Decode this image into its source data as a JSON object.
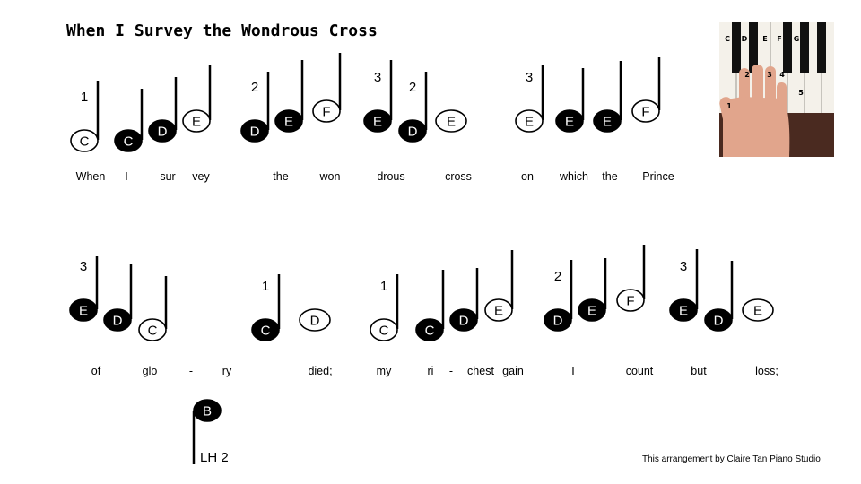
{
  "title": "When I Survey the Wondrous Cross",
  "credit": "This arrangement by Claire Tan Piano Studio",
  "left_hand_label": "LH 2",
  "colors": {
    "filled": "#000000",
    "open": "#ffffff",
    "ink": "#000000"
  },
  "photo": {
    "description_icon": "piano-keyboard-hand-photo",
    "key_letters": [
      "C",
      "D",
      "E",
      "F",
      "G"
    ],
    "finger_numbers": [
      "1",
      "2",
      "3",
      "4",
      "5"
    ]
  },
  "lines": [
    {
      "notes": [
        {
          "letter": "C",
          "filled": false,
          "finger": "1"
        },
        {
          "letter": "C",
          "filled": true
        },
        {
          "letter": "D",
          "filled": true
        },
        {
          "letter": "E",
          "filled": false
        },
        {
          "letter": "D",
          "filled": true,
          "finger": "2"
        },
        {
          "letter": "E",
          "filled": true
        },
        {
          "letter": "F",
          "filled": false
        },
        {
          "letter": "E",
          "filled": true,
          "finger": "3"
        },
        {
          "letter": "D",
          "filled": true,
          "finger": "2"
        },
        {
          "letter": "E",
          "filled": false,
          "stemless": true
        },
        {
          "letter": "E",
          "filled": false,
          "finger": "3"
        },
        {
          "letter": "E",
          "filled": true
        },
        {
          "letter": "E",
          "filled": true
        },
        {
          "letter": "F",
          "filled": false
        }
      ],
      "lyrics": [
        "When",
        "I",
        "sur",
        "-",
        "vey",
        "the",
        "won",
        "-",
        "drous",
        "cross",
        "on",
        "which",
        "the",
        "Prince"
      ]
    },
    {
      "notes": [
        {
          "letter": "E",
          "filled": true,
          "finger": "3"
        },
        {
          "letter": "D",
          "filled": true
        },
        {
          "letter": "C",
          "filled": false
        },
        {
          "letter": "C",
          "filled": true,
          "finger": "1"
        },
        {
          "letter": "D",
          "filled": false,
          "stemless": true
        },
        {
          "letter": "C",
          "filled": false,
          "finger": "1"
        },
        {
          "letter": "C",
          "filled": true
        },
        {
          "letter": "D",
          "filled": true
        },
        {
          "letter": "E",
          "filled": false
        },
        {
          "letter": "D",
          "filled": true,
          "finger": "2"
        },
        {
          "letter": "E",
          "filled": true
        },
        {
          "letter": "F",
          "filled": false
        },
        {
          "letter": "E",
          "filled": true,
          "finger": "3"
        },
        {
          "letter": "D",
          "filled": true
        },
        {
          "letter": "E",
          "filled": false,
          "stemless": true
        }
      ],
      "lyrics": [
        "of",
        "glo",
        "-",
        "ry",
        "died;",
        "my",
        "ri",
        "-",
        "chest",
        "gain",
        "I",
        "count",
        "but",
        "loss;"
      ]
    }
  ],
  "left_hand_note": {
    "letter": "B",
    "filled": true
  }
}
